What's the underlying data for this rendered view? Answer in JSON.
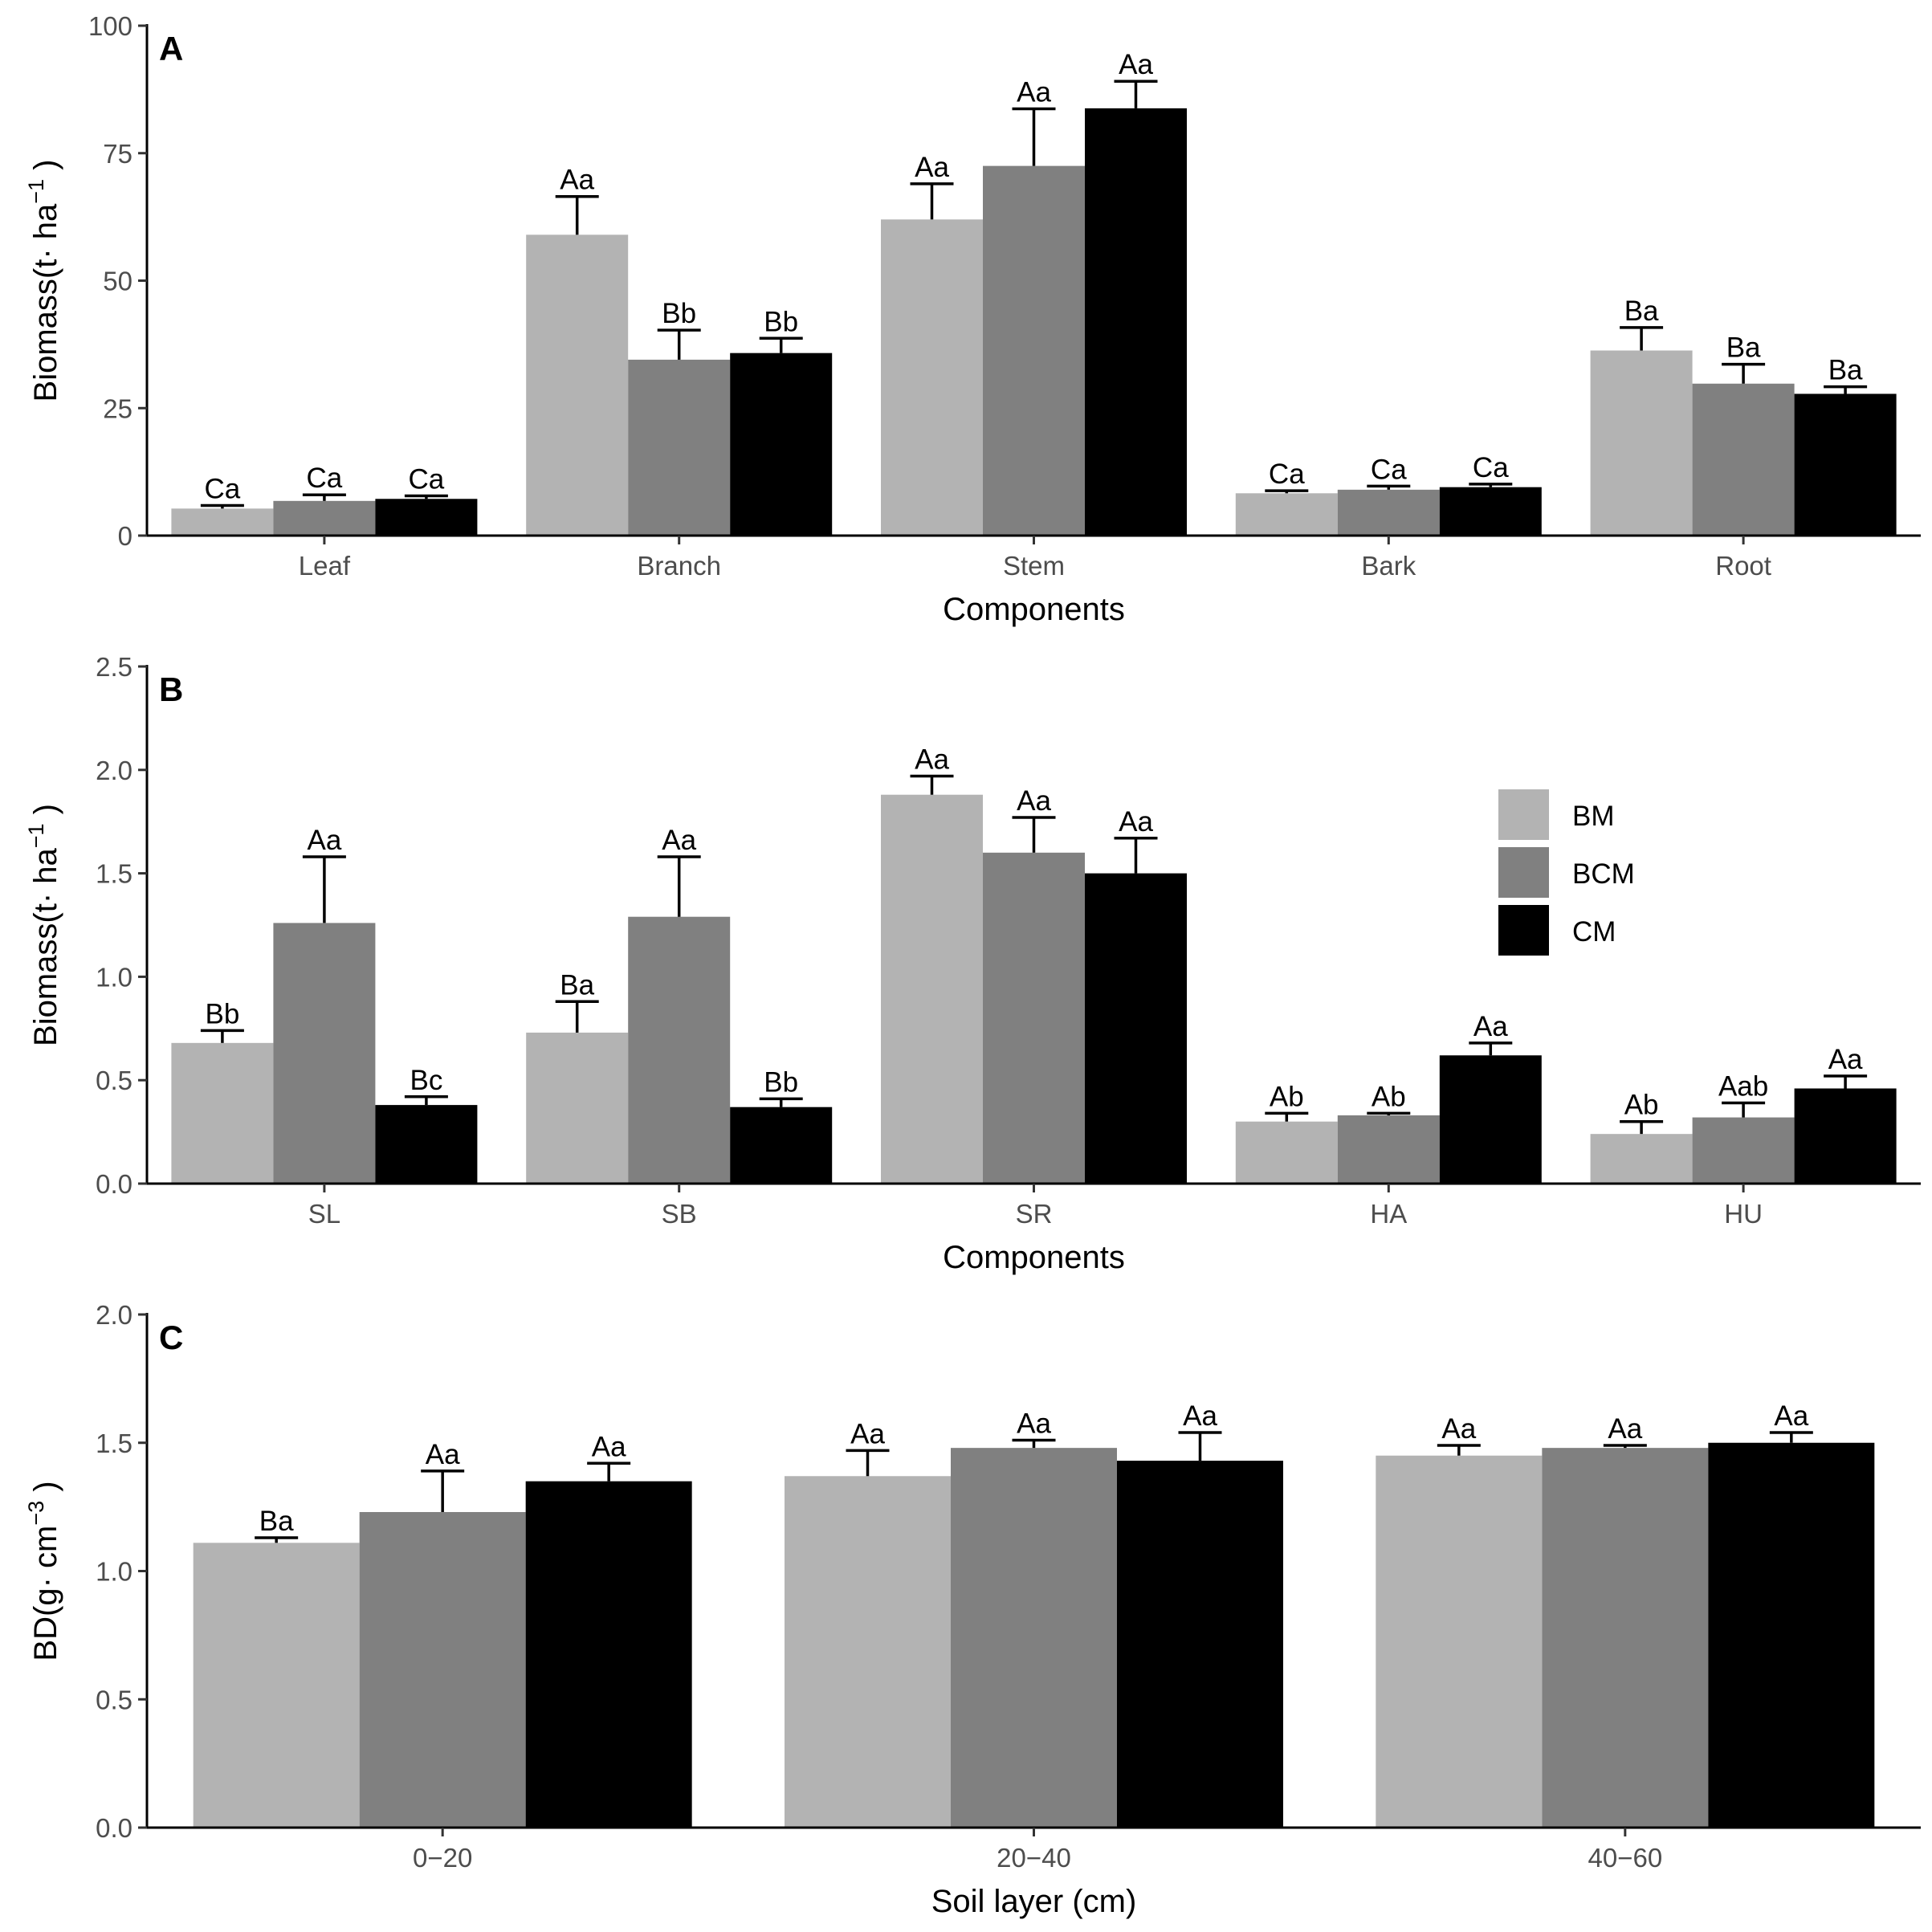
{
  "chart_data": [
    {
      "panel": "A",
      "type": "bar",
      "xlabel": "Components",
      "ylabel": {
        "main": "Biomass(t· ha",
        "sup": "−1",
        "end": " )"
      },
      "ylim": [
        0,
        100
      ],
      "yticks": [
        "0",
        "25",
        "50",
        "75",
        "100"
      ],
      "grid": false,
      "categories": [
        "Leaf",
        "Branch",
        "Stem",
        "Bark",
        "Root"
      ],
      "series": [
        {
          "name": "BM",
          "color": "#b3b3b3",
          "values": [
            5.3,
            59.0,
            62.0,
            8.3,
            36.3
          ],
          "errors": [
            0.6,
            7.5,
            7.0,
            0.5,
            4.5
          ],
          "labels": [
            "Ca",
            "Aa",
            "Aa",
            "Ca",
            "Ba"
          ]
        },
        {
          "name": "BCM",
          "color": "#808080",
          "values": [
            6.8,
            34.5,
            72.5,
            9.0,
            29.8
          ],
          "errors": [
            1.2,
            5.8,
            11.2,
            0.7,
            3.8
          ],
          "labels": [
            "Ca",
            "Bb",
            "Aa",
            "Ca",
            "Ba"
          ]
        },
        {
          "name": "CM",
          "color": "#000000",
          "values": [
            7.2,
            35.8,
            83.8,
            9.5,
            27.8
          ],
          "errors": [
            0.6,
            2.9,
            5.3,
            0.6,
            1.4
          ],
          "labels": [
            "Ca",
            "Bb",
            "Aa",
            "Ca",
            "Ba"
          ]
        }
      ]
    },
    {
      "panel": "B",
      "type": "bar",
      "xlabel": "Components",
      "ylabel": {
        "main": "Biomass(t· ha",
        "sup": "−1",
        "end": " )"
      },
      "ylim": [
        0,
        2.5
      ],
      "yticks": [
        "0.0",
        "0.5",
        "1.0",
        "1.5",
        "2.0",
        "2.5"
      ],
      "grid": false,
      "legend": {
        "placement": "top-right",
        "entries": [
          "BM",
          "BCM",
          "CM"
        ]
      },
      "categories": [
        "SL",
        "SB",
        "SR",
        "HA",
        "HU"
      ],
      "series": [
        {
          "name": "BM",
          "color": "#b3b3b3",
          "values": [
            0.68,
            0.73,
            1.88,
            0.3,
            0.24
          ],
          "errors": [
            0.06,
            0.15,
            0.09,
            0.04,
            0.06
          ],
          "labels": [
            "Bb",
            "Ba",
            "Aa",
            "Ab",
            "Ab"
          ]
        },
        {
          "name": "BCM",
          "color": "#808080",
          "values": [
            1.26,
            1.29,
            1.6,
            0.33,
            0.32
          ],
          "errors": [
            0.32,
            0.29,
            0.17,
            0.01,
            0.07
          ],
          "labels": [
            "Aa",
            "Aa",
            "Aa",
            "Ab",
            "Aab"
          ]
        },
        {
          "name": "CM",
          "color": "#000000",
          "values": [
            0.38,
            0.37,
            1.5,
            0.62,
            0.46
          ],
          "errors": [
            0.04,
            0.04,
            0.17,
            0.06,
            0.06
          ],
          "labels": [
            "Bc",
            "Bb",
            "Aa",
            "Aa",
            "Aa"
          ]
        }
      ]
    },
    {
      "panel": "C",
      "type": "bar",
      "xlabel": "Soil layer (cm)",
      "ylabel": {
        "main": "BD(g· cm",
        "sup": "−3",
        "end": " )"
      },
      "ylim": [
        0,
        2.0
      ],
      "yticks": [
        "0.0",
        "0.5",
        "1.0",
        "1.5",
        "2.0"
      ],
      "grid": false,
      "categories": [
        "0−20",
        "20−40",
        "40−60"
      ],
      "series": [
        {
          "name": "BM",
          "color": "#b3b3b3",
          "values": [
            1.11,
            1.37,
            1.45
          ],
          "errors": [
            0.02,
            0.1,
            0.04
          ],
          "labels": [
            "Ba",
            "Aa",
            "Aa"
          ]
        },
        {
          "name": "BCM",
          "color": "#808080",
          "values": [
            1.23,
            1.48,
            1.48
          ],
          "errors": [
            0.16,
            0.03,
            0.01
          ],
          "labels": [
            "Aa",
            "Aa",
            "Aa"
          ]
        },
        {
          "name": "CM",
          "color": "#000000",
          "values": [
            1.35,
            1.43,
            1.5
          ],
          "errors": [
            0.07,
            0.11,
            0.04
          ],
          "labels": [
            "Aa",
            "Aa",
            "Aa"
          ]
        }
      ]
    }
  ]
}
